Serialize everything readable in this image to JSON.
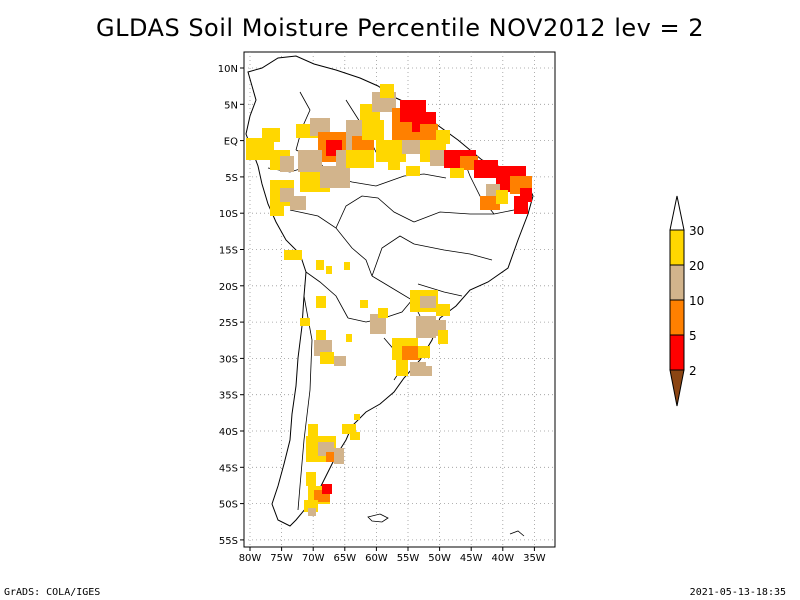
{
  "title": "GLDAS Soil Moisture Percentile NOV2012 lev = 2",
  "map": {
    "lat_ticks": [
      "10N",
      "5N",
      "EQ",
      "5S",
      "10S",
      "15S",
      "20S",
      "25S",
      "30S",
      "35S",
      "40S",
      "45S",
      "50S",
      "55S"
    ],
    "lon_ticks": [
      "80W",
      "75W",
      "70W",
      "65W",
      "60W",
      "55W",
      "50W",
      "45W",
      "40W",
      "35W"
    ]
  },
  "colorbar": {
    "labels": [
      "2",
      "5",
      "10",
      "20",
      "30"
    ],
    "colors": {
      "below_2": "#8b4513",
      "2_5": "#ff0000",
      "5_10": "#ff8000",
      "10_20": "#d2b48c",
      "20_30": "#ffd700",
      "above_30": "#ffffff"
    }
  },
  "footer": {
    "left": "GrADS: COLA/IGES",
    "right": "2021-05-13-18:35"
  }
}
